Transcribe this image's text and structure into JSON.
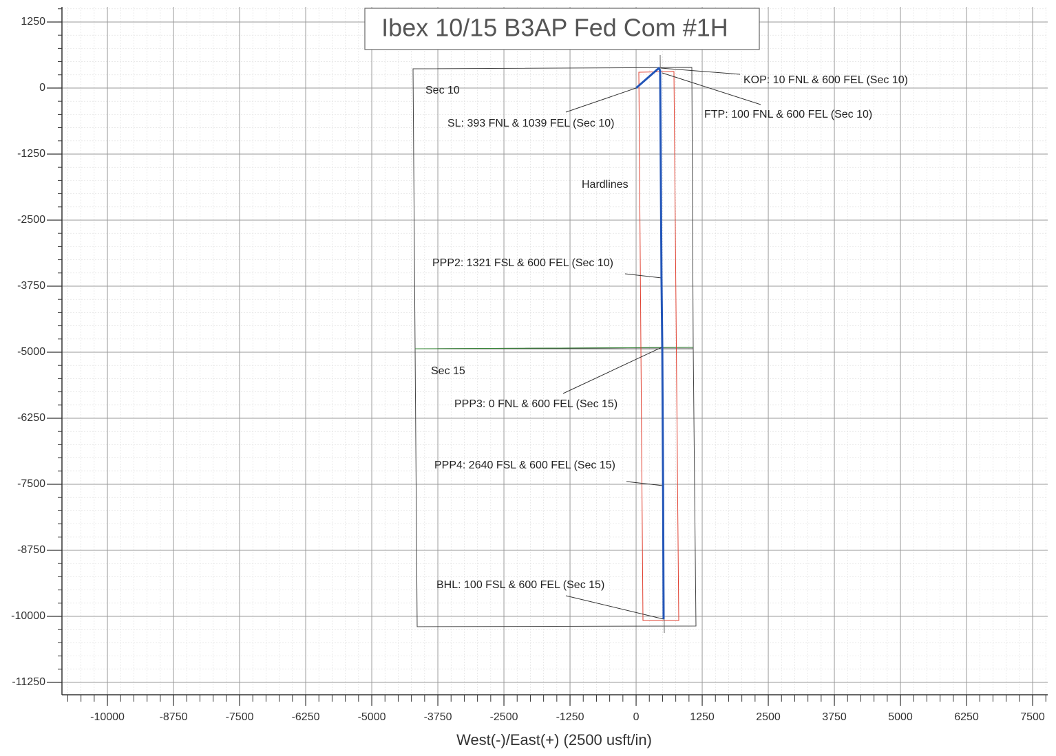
{
  "chart_data": {
    "type": "line",
    "title": "Ibex 10/15 B3AP Fed Com #1H",
    "x_label": "West(-)/East(+) (2500 usft/in)",
    "x": [
      0,
      430,
      455,
      480,
      495,
      510,
      520
    ],
    "series": [
      {
        "color": "#2255b8",
        "values": [
          0,
          378,
          325,
          -3580,
          -4910,
          -7526,
          -10050
        ]
      }
    ],
    "xlim": [
      -10860,
      7786
    ],
    "ylim": [
      -11484,
      1536
    ],
    "xticks": [
      -10000,
      -8750,
      -7500,
      -6250,
      -5000,
      -3750,
      -2500,
      -1250,
      0,
      1250,
      2500,
      3750,
      5000,
      6250,
      7500
    ],
    "yticks": [
      1250,
      0,
      -1250,
      -2500,
      -3750,
      -5000,
      -6250,
      -7500,
      -8750,
      -10000,
      -11250
    ],
    "grid": true,
    "annotations": [
      "Sec 10",
      "SL: 393 FNL & 1039 FEL (Sec 10)",
      "KOP: 10 FNL & 600 FEL (Sec 10)",
      "FTP: 100 FNL & 600 FEL (Sec 10)",
      "Hardlines",
      "PPP2: 1321 FSL & 600 FEL (Sec 10)",
      "Sec 15",
      "PPP3: 0 FNL & 600 FEL (Sec 15)",
      "PPP4: 2640 FSL & 600 FEL (Sec 15)",
      "BHL: 100 FSL & 600 FEL (Sec 15)"
    ]
  }
}
